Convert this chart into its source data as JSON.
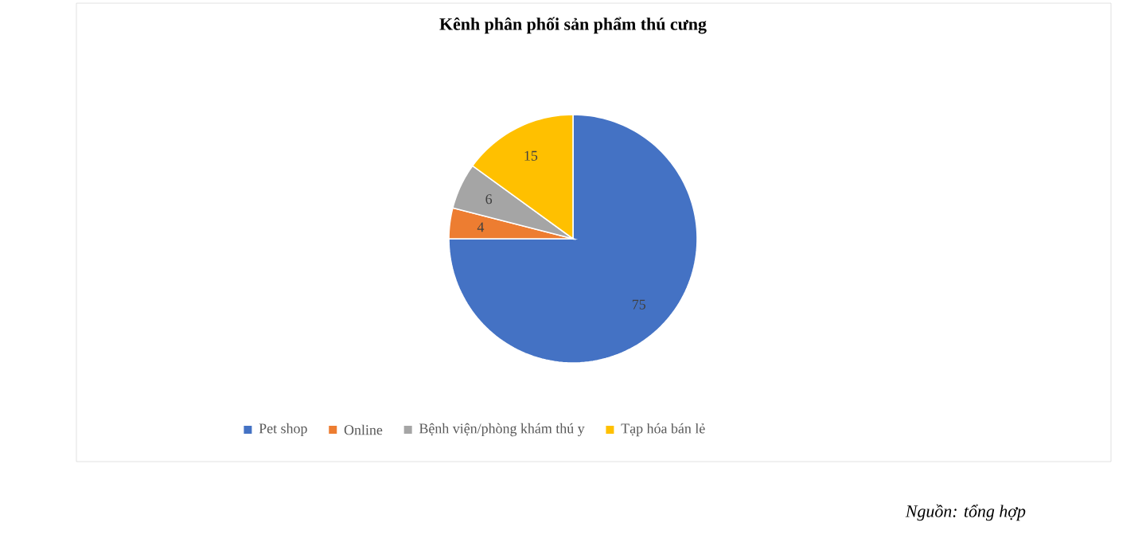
{
  "chart_data": {
    "type": "pie",
    "title": "Kênh phân phối sản phẩm thú cưng",
    "categories": [
      "Pet shop",
      "Online",
      "Bệnh viện/phòng khám thú y",
      "Tạp hóa bán lẻ"
    ],
    "values": [
      75,
      4,
      6,
      15
    ],
    "colors": [
      "#4472c4",
      "#ed7d31",
      "#a5a5a5",
      "#ffc000"
    ],
    "data_labels": true,
    "legend": "bottom",
    "annotations": [
      "*Nguồn: tổng hợp*"
    ]
  }
}
